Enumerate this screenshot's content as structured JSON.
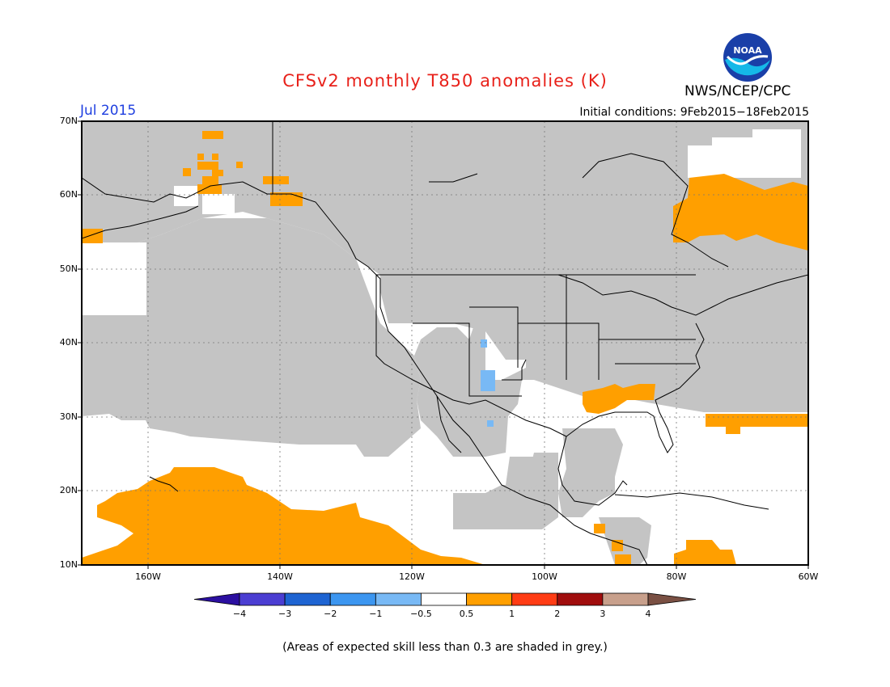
{
  "header": {
    "title": "CFSv2 monthly T850 anomalies (K)",
    "valid_month": "Jul 2015",
    "initial_conditions": "Initial conditions: 9Feb2015−18Feb2015",
    "agency": "NWS/NCEP/CPC",
    "logo_text": "NOAA"
  },
  "map": {
    "lat_labels": [
      "70N",
      "60N",
      "50N",
      "40N",
      "30N",
      "20N",
      "10N"
    ],
    "lon_labels": [
      "160W",
      "140W",
      "120W",
      "100W",
      "80W",
      "60W"
    ],
    "colors": {
      "grey_low_skill": "#c4c4c4",
      "warm_anomaly": "#ff9f00",
      "cool_anomaly": "#78b9f5",
      "land_outline": "#000000",
      "grid": "#777777"
    }
  },
  "colorbar": {
    "tick_labels": [
      "−4",
      "−3",
      "−2",
      "−1",
      "−0.5",
      "0.5",
      "1",
      "2",
      "3",
      "4"
    ],
    "colors": [
      "#2b0fa0",
      "#4b3ed2",
      "#1e64d2",
      "#3c96f0",
      "#78b9f5",
      "#ffffff",
      "#ff9f00",
      "#ff3c14",
      "#a00d0d",
      "#c8a08c",
      "#7a5043"
    ]
  },
  "footer": {
    "note": "(Areas of expected skill less than 0.3 are shaded in grey.)"
  }
}
